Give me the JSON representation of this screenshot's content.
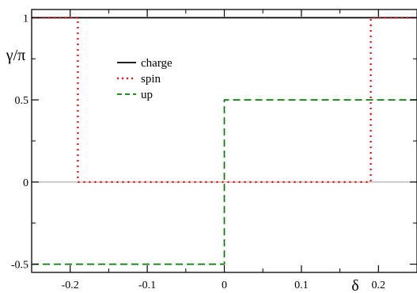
{
  "chart_data": {
    "type": "line",
    "title": "",
    "xlabel": "δ",
    "ylabel": "γ/π",
    "xlim": [
      -0.25,
      0.25
    ],
    "ylim": [
      -0.55,
      1.05
    ],
    "xticks": [
      -0.2,
      -0.1,
      0,
      0.1,
      0.2
    ],
    "xtick_labels": [
      "-0.2",
      "-0.1",
      "0",
      "0.1",
      "0.2"
    ],
    "yticks": [
      -0.5,
      0,
      0.5,
      1
    ],
    "ytick_labels": [
      "-0.5",
      "0",
      "0.5",
      "1"
    ],
    "grid": false,
    "legend_position": "upper-left inside",
    "series": [
      {
        "name": "charge",
        "color": "#000000",
        "dash": "solid",
        "x": [
          -0.25,
          0.25
        ],
        "y": [
          1,
          1
        ]
      },
      {
        "name": "spin",
        "color": "#ff0000",
        "dash": "dotted",
        "x": [
          -0.25,
          -0.19,
          -0.19,
          0.19,
          0.19,
          0.25
        ],
        "y": [
          1,
          1,
          0,
          0,
          1,
          1
        ]
      },
      {
        "name": "up",
        "color": "#008000",
        "dash": "dashed",
        "x": [
          -0.25,
          0,
          0,
          0.25
        ],
        "y": [
          -0.5,
          -0.5,
          0.5,
          0.5
        ]
      }
    ],
    "reference_lines": [
      {
        "orientation": "horizontal",
        "y": 0,
        "color": "#b0b0b0"
      }
    ]
  }
}
